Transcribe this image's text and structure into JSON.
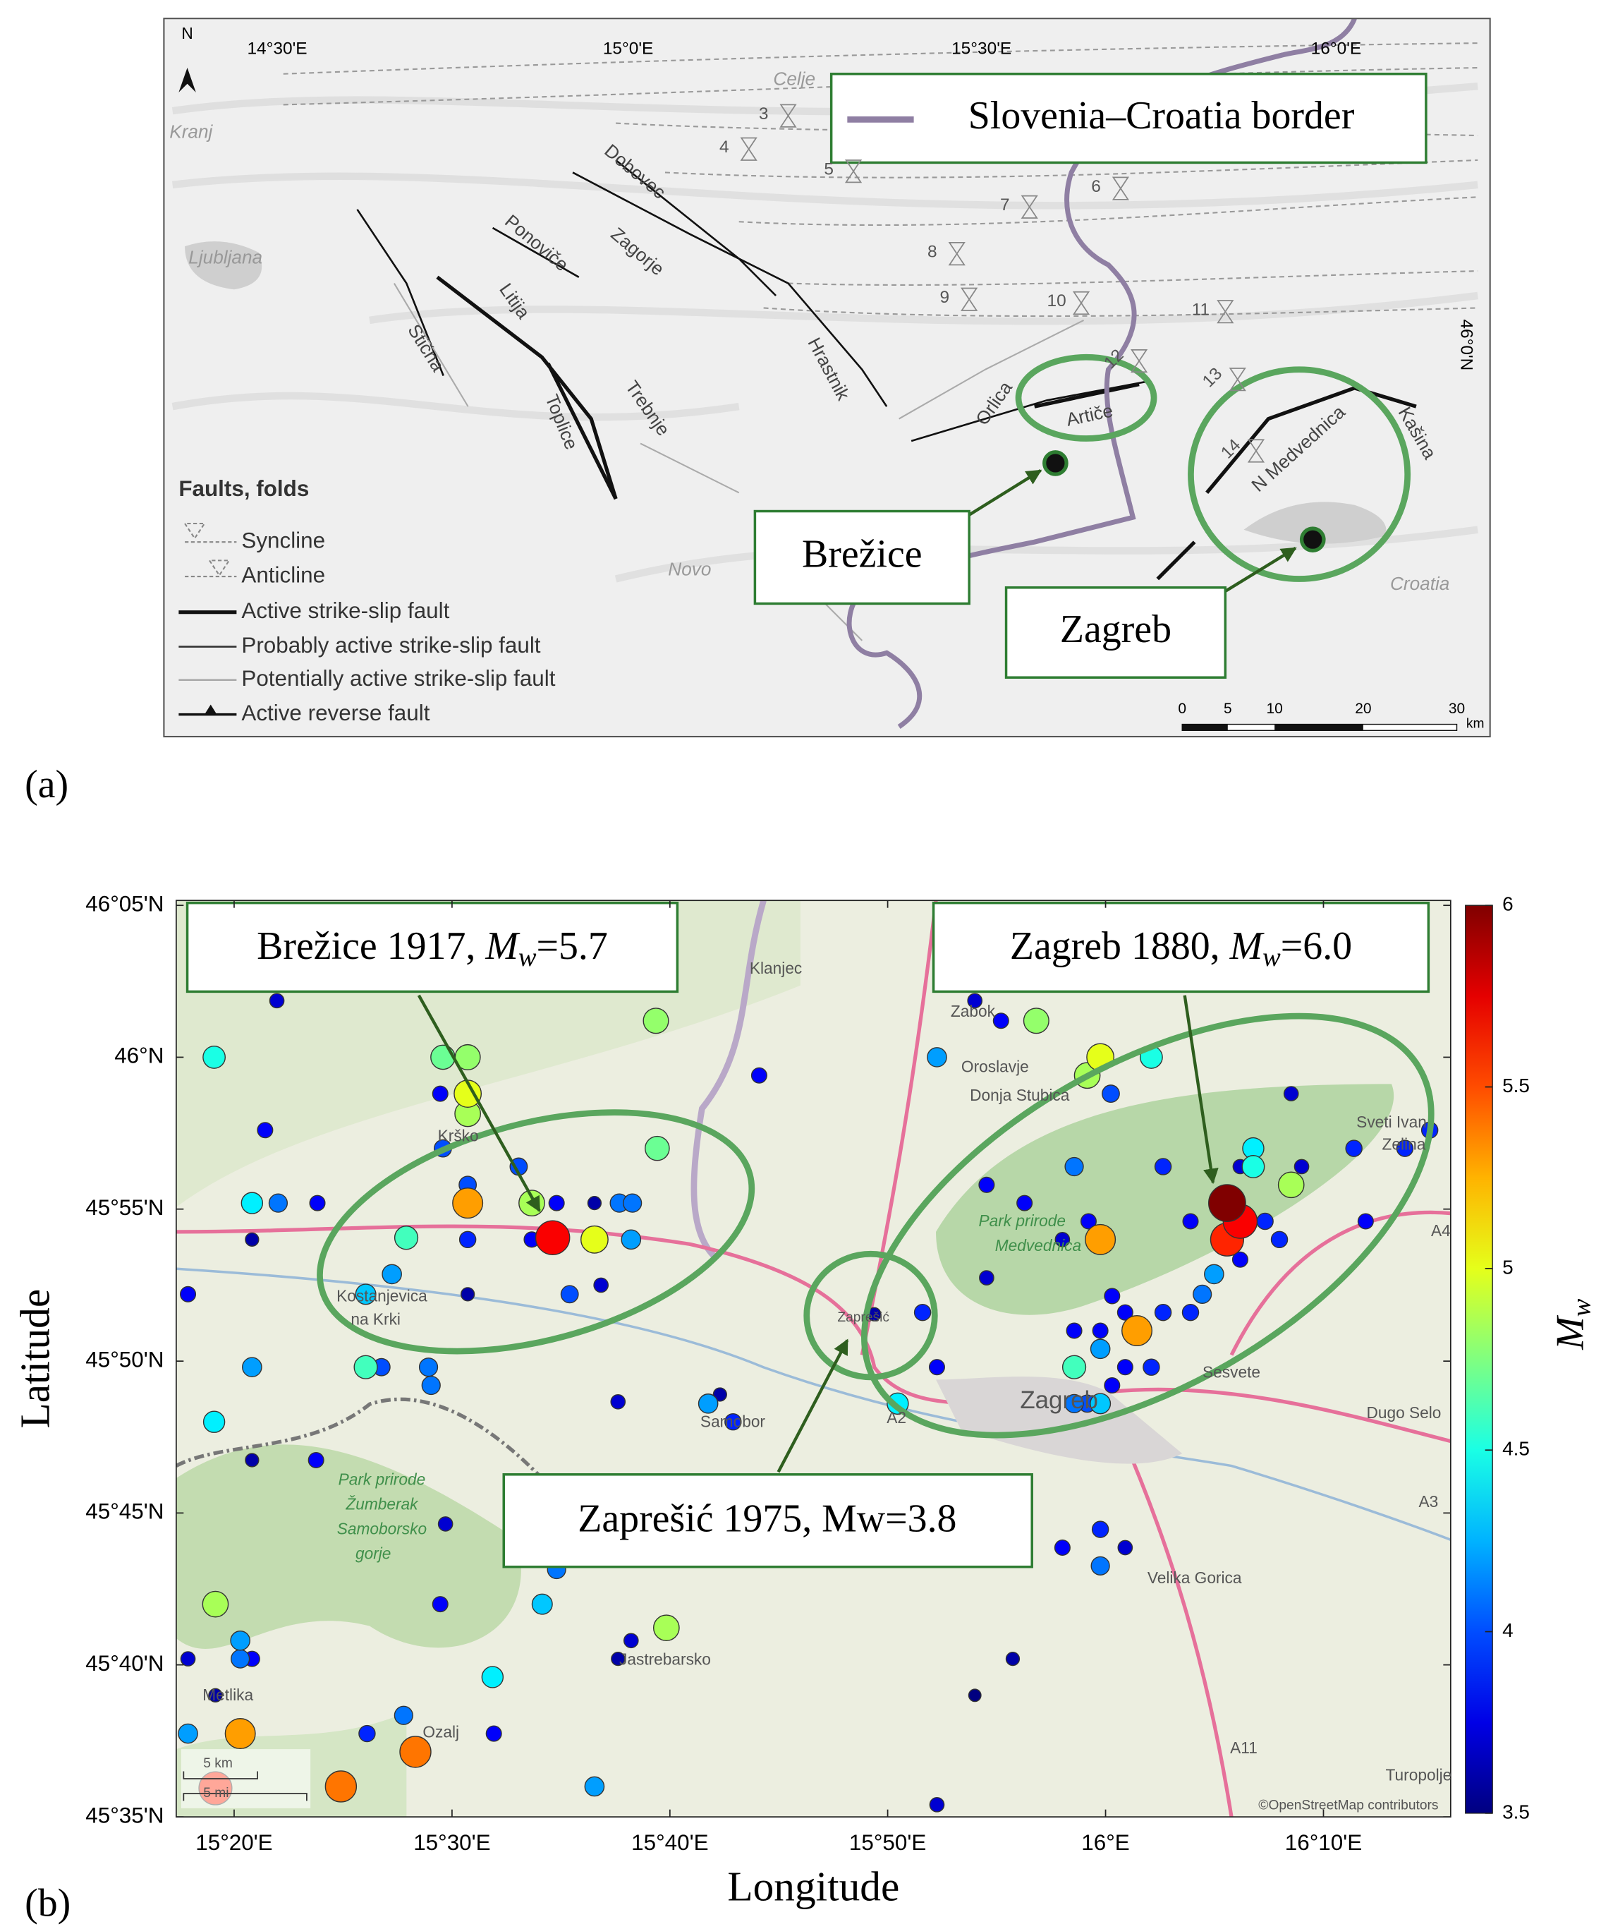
{
  "panel_a": {
    "label": "(a)",
    "north": "N",
    "lon_labels": [
      "14°30'E",
      "15°0'E",
      "15°30'E",
      "16°0'E"
    ],
    "lat_label": "46°0'N",
    "places": [
      "Celje",
      "Kranj",
      "Ljubljana",
      "Novo",
      "Croatia"
    ],
    "faults": [
      "Dobovec",
      "Ponoviče",
      "Zagorje",
      "Litija",
      "Stična",
      "Toplice",
      "Trebnje",
      "Hrastnik",
      "Orlica",
      "Artiče",
      "N Medvednica",
      "Kašina"
    ],
    "fold_numbers": [
      "3",
      "4",
      "5",
      "6",
      "7",
      "8",
      "9",
      "10",
      "11",
      "12",
      "13",
      "14"
    ],
    "legend": {
      "title": "Faults, folds",
      "items": [
        "Syncline",
        "Anticline",
        "Active strike-slip fault",
        "Probably active strike-slip fault",
        "Potentially active strike-slip fault",
        "Active reverse fault"
      ]
    },
    "scale": {
      "ticks": [
        "0",
        "5",
        "10",
        "20",
        "30"
      ],
      "unit": "km"
    },
    "callouts": {
      "border": "Slovenia–Croatia border",
      "brezice": "Brežice",
      "zagreb": "Zagreb"
    }
  },
  "panel_b_label": "(b)",
  "chart_data": {
    "type": "scatter",
    "xlabel": "Longitude",
    "ylabel": "Latitude",
    "xlim": [
      15.289,
      16.264
    ],
    "ylim": [
      45.5833,
      46.086
    ],
    "xticks": [
      {
        "value": 15.3333,
        "label": "15°20'E"
      },
      {
        "value": 15.5,
        "label": "15°30'E"
      },
      {
        "value": 15.6667,
        "label": "15°40'E"
      },
      {
        "value": 15.8333,
        "label": "15°50'E"
      },
      {
        "value": 16.0,
        "label": "16°E"
      },
      {
        "value": 16.1667,
        "label": "16°10'E"
      }
    ],
    "yticks": [
      {
        "value": 45.5833,
        "label": "45°35'N"
      },
      {
        "value": 45.6667,
        "label": "45°40'N"
      },
      {
        "value": 45.75,
        "label": "45°45'N"
      },
      {
        "value": 45.8333,
        "label": "45°50'N"
      },
      {
        "value": 45.9167,
        "label": "45°55'N"
      },
      {
        "value": 46.0,
        "label": "46°N"
      },
      {
        "value": 46.0833,
        "label": "46°05'N"
      }
    ],
    "x": [
      15.366,
      15.656,
      15.318,
      15.493,
      15.512,
      15.512,
      15.512,
      15.491,
      15.357,
      15.735,
      15.493,
      15.551,
      15.657,
      15.298,
      15.347,
      15.367,
      15.397,
      15.347,
      15.512,
      15.512,
      15.561,
      15.58,
      15.609,
      15.628,
      15.638,
      15.577,
      15.609,
      15.637,
      15.465,
      15.512,
      15.561,
      15.512,
      15.454,
      15.434,
      15.59,
      15.614,
      15.347,
      15.434,
      15.446,
      15.482,
      15.484,
      15.627,
      15.696,
      15.705,
      15.715,
      15.318,
      15.347,
      15.396,
      15.495,
      15.58,
      15.319,
      15.491,
      15.569,
      15.664,
      15.338,
      15.338,
      15.347,
      15.298,
      15.531,
      15.637,
      15.627,
      15.319,
      15.298,
      15.338,
      15.435,
      15.463,
      15.472,
      15.532,
      15.319,
      15.415,
      15.609,
      15.871,
      15.9,
      15.92,
      15.947,
      15.871,
      15.996,
      16.035,
      15.986,
      16.004,
      16.142,
      15.976,
      16.044,
      16.113,
      16.113,
      16.103,
      16.15,
      16.142,
      16.19,
      16.229,
      16.248,
      15.909,
      15.938,
      16.093,
      16.103,
      16.093,
      15.996,
      15.987,
      15.967,
      16.065,
      16.122,
      16.133,
      16.199,
      16.103,
      16.083,
      16.074,
      16.065,
      16.044,
      16.005,
      16.024,
      15.976,
      15.996,
      16.015,
      15.909,
      15.86,
      15.871,
      15.841,
      15.976,
      15.996,
      16.015,
      16.035,
      16.005,
      15.976,
      15.986,
      15.996,
      15.996,
      15.967,
      16.015,
      15.996,
      15.929,
      15.9,
      15.823
    ],
    "y": [
      46.031,
      46.02,
      46.0,
      46.0,
      46.0,
      45.98,
      45.969,
      45.98,
      45.96,
      45.99,
      45.95,
      45.94,
      45.95,
      45.87,
      45.92,
      45.92,
      45.92,
      45.9,
      45.93,
      45.92,
      45.92,
      45.92,
      45.92,
      45.92,
      45.92,
      45.901,
      45.9,
      45.9,
      45.901,
      45.9,
      45.9,
      45.87,
      45.881,
      45.87,
      45.87,
      45.875,
      45.83,
      45.83,
      45.83,
      45.83,
      45.82,
      45.811,
      45.81,
      45.815,
      45.8,
      45.8,
      45.779,
      45.779,
      45.744,
      45.719,
      45.7,
      45.7,
      45.7,
      45.687,
      45.68,
      45.67,
      45.67,
      45.67,
      45.66,
      45.68,
      45.67,
      45.65,
      45.629,
      45.629,
      45.629,
      45.639,
      45.619,
      45.629,
      45.599,
      45.6,
      45.6,
      45.59,
      46.031,
      46.02,
      46.02,
      46.0,
      46.0,
      46.0,
      45.99,
      45.98,
      45.98,
      45.94,
      45.94,
      45.95,
      45.94,
      45.94,
      45.94,
      45.93,
      45.95,
      45.95,
      45.96,
      45.93,
      45.92,
      45.92,
      45.91,
      45.9,
      45.9,
      45.91,
      45.9,
      45.91,
      45.91,
      45.9,
      45.91,
      45.889,
      45.881,
      45.87,
      45.86,
      45.86,
      45.869,
      45.85,
      45.85,
      45.85,
      45.86,
      45.879,
      45.86,
      45.83,
      45.81,
      45.83,
      45.84,
      45.83,
      45.83,
      45.82,
      45.81,
      45.81,
      45.81,
      45.741,
      45.731,
      45.731,
      45.721,
      45.67,
      45.65,
      45.859
    ],
    "values": [
      3.7,
      4.8,
      4.5,
      4.7,
      4.8,
      5.0,
      4.85,
      3.8,
      3.8,
      3.8,
      4.0,
      4.0,
      4.7,
      3.8,
      4.4,
      4.1,
      3.8,
      3.6,
      4.0,
      5.3,
      4.85,
      3.8,
      3.6,
      4.1,
      4.1,
      5.7,
      5.0,
      4.2,
      4.6,
      3.9,
      3.8,
      3.6,
      4.2,
      4.3,
      4.0,
      3.7,
      4.2,
      4.6,
      4.0,
      4.1,
      4.1,
      3.7,
      4.2,
      3.6,
      3.9,
      4.4,
      3.6,
      3.8,
      3.7,
      4.1,
      4.85,
      3.8,
      4.3,
      4.85,
      4.2,
      4.1,
      3.8,
      3.7,
      4.4,
      3.7,
      3.6,
      3.6,
      4.2,
      5.3,
      3.9,
      4.1,
      5.4,
      3.8,
      5.6,
      5.4,
      4.2,
      3.7,
      3.7,
      3.8,
      4.8,
      4.2,
      5.0,
      4.5,
      4.85,
      4.0,
      3.7,
      4.1,
      3.9,
      4.4,
      4.5,
      3.7,
      3.7,
      4.85,
      3.9,
      3.9,
      3.9,
      3.8,
      3.8,
      6.0,
      5.7,
      5.6,
      5.3,
      3.8,
      3.7,
      3.8,
      3.9,
      3.9,
      3.8,
      3.8,
      4.2,
      4.1,
      3.9,
      3.9,
      3.8,
      5.3,
      3.8,
      3.8,
      3.8,
      3.7,
      3.9,
      3.8,
      4.4,
      4.6,
      4.2,
      3.8,
      3.9,
      3.8,
      4.1,
      4.0,
      4.3,
      3.9,
      3.8,
      3.7,
      4.1,
      3.6,
      3.5,
      3.6
    ],
    "colorbar": {
      "colormap": "jet",
      "lim": [
        3.5,
        6
      ],
      "ticks": [
        3.5,
        4,
        4.5,
        5,
        5.5,
        6
      ],
      "label": {
        "symbol": "M",
        "subscript": "w"
      }
    },
    "callouts": [
      {
        "prefix": "Brežice 1917,",
        "symbol": "M",
        "subscript": "w",
        "suffix": "=5.7"
      },
      {
        "prefix": "Zagreb 1880,",
        "symbol": "M",
        "subscript": "w",
        "suffix": "=6.0"
      },
      {
        "text": "Zaprešić 1975, Mw=3.8"
      }
    ],
    "basemap_labels": [
      "Klanjec",
      "Zabok",
      "Oroslavje",
      "Donja Stubica",
      "Sveti Ivan",
      "Zelina",
      "Park prirode",
      "Medvednica",
      "Zagreb",
      "Sesvete",
      "Dugo Selo",
      "Samobor",
      "Velika Gorica",
      "Jastrebarsko",
      "Ozalj",
      "Metlika",
      "Krško",
      "Kostanjevica",
      "na Krki",
      "Park prirode",
      "Žumberak",
      "Samoborsko",
      "gorje",
      "Turopolje",
      "A2",
      "A3",
      "A4",
      "A11",
      "©OpenStreetMap contributors",
      "5 km",
      "5 mi",
      "Zaprešić"
    ]
  }
}
